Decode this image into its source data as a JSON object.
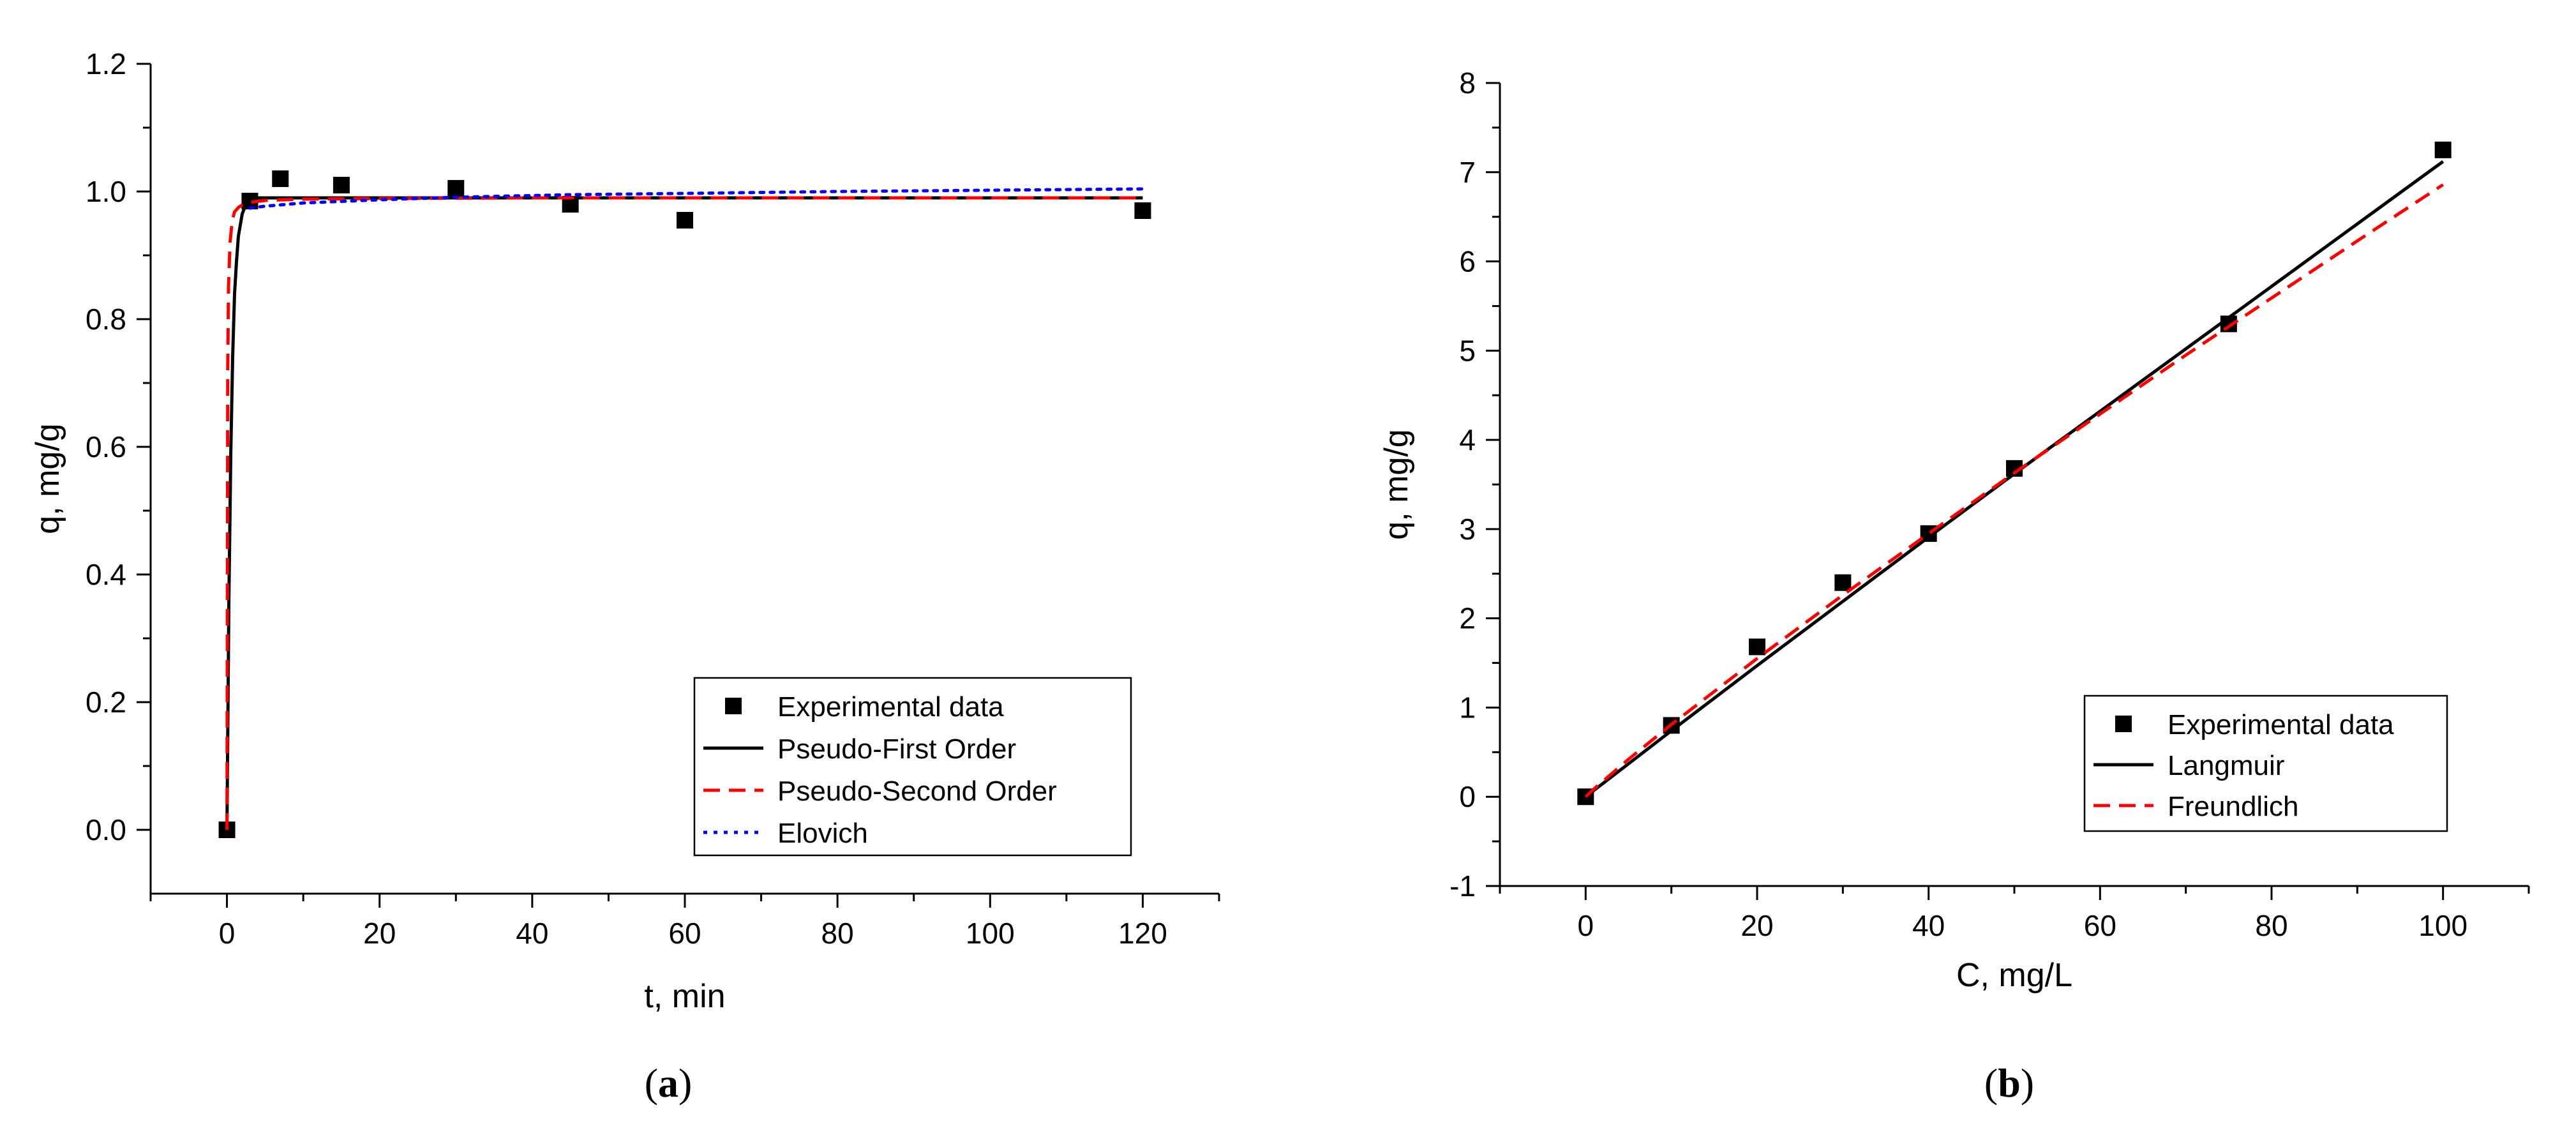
{
  "captions": {
    "a": "a",
    "b": "b"
  },
  "chart_data": [
    {
      "type": "scatter",
      "panel": "a",
      "xlabel": "t, min",
      "ylabel": "q, mg/g",
      "xlim": [
        -10,
        130
      ],
      "ylim": [
        -0.1,
        1.2
      ],
      "xticks": [
        0,
        20,
        40,
        60,
        80,
        100,
        120
      ],
      "yticks": [
        0.0,
        0.2,
        0.4,
        0.6,
        0.8,
        1.0,
        1.2
      ],
      "tick_decimals_y": 1,
      "legend_position": "bottom-right",
      "series": [
        {
          "name": "Experimental data",
          "kind": "markers",
          "color": "#000000",
          "x": [
            0,
            3,
            7,
            15,
            30,
            45,
            60,
            120
          ],
          "y": [
            0.0,
            0.985,
            1.02,
            1.01,
            1.005,
            0.98,
            0.955,
            0.97
          ]
        },
        {
          "name": "Pseudo-First Order",
          "kind": "line",
          "dash": "solid",
          "color": "#000000",
          "x": [
            0,
            0.25,
            0.5,
            0.75,
            1,
            1.25,
            1.5,
            2,
            2.5,
            3,
            4,
            6,
            10,
            20,
            40,
            60,
            80,
            100,
            120
          ],
          "y": [
            0,
            0.36,
            0.59,
            0.74,
            0.84,
            0.89,
            0.93,
            0.965,
            0.98,
            0.985,
            0.99,
            0.99,
            0.99,
            0.99,
            0.99,
            0.99,
            0.99,
            0.99,
            0.99
          ]
        },
        {
          "name": "Pseudo-Second Order",
          "kind": "line",
          "dash": "dashed",
          "color": "#ff0000",
          "x": [
            0,
            0.1,
            0.2,
            0.4,
            0.7,
            1,
            1.5,
            2,
            3,
            5,
            10,
            20,
            40,
            60,
            80,
            100,
            120
          ],
          "y": [
            0,
            0.72,
            0.85,
            0.92,
            0.955,
            0.968,
            0.975,
            0.979,
            0.983,
            0.986,
            0.988,
            0.989,
            0.99,
            0.99,
            0.99,
            0.99,
            0.99
          ]
        },
        {
          "name": "Elovich",
          "kind": "line",
          "dash": "dotted",
          "color": "#0000ff",
          "x": [
            3,
            5,
            10,
            20,
            30,
            45,
            60,
            80,
            100,
            120
          ],
          "y": [
            0.974,
            0.977,
            0.982,
            0.987,
            0.991,
            0.995,
            0.997,
            1.0,
            1.002,
            1.004
          ]
        }
      ]
    },
    {
      "type": "scatter",
      "panel": "b",
      "xlabel": "C, mg/L",
      "ylabel": "q, mg/g",
      "xlim": [
        -10,
        110
      ],
      "ylim": [
        -1,
        8
      ],
      "xticks": [
        0,
        20,
        40,
        60,
        80,
        100
      ],
      "yticks": [
        -1,
        0,
        1,
        2,
        3,
        4,
        5,
        6,
        7,
        8
      ],
      "tick_decimals_y": 0,
      "legend_position": "bottom-right",
      "series": [
        {
          "name": "Experimental data",
          "kind": "markers",
          "color": "#000000",
          "x": [
            0,
            10,
            20,
            30,
            40,
            50,
            75,
            100
          ],
          "y": [
            0.0,
            0.8,
            1.68,
            2.4,
            2.95,
            3.68,
            5.3,
            7.25
          ]
        },
        {
          "name": "Langmuir",
          "kind": "line",
          "dash": "solid",
          "color": "#000000",
          "x": [
            0,
            10,
            20,
            30,
            40,
            50,
            60,
            70,
            80,
            90,
            100
          ],
          "y": [
            0,
            0.74,
            1.47,
            2.19,
            2.91,
            3.62,
            4.32,
            5.02,
            5.72,
            6.42,
            7.12
          ]
        },
        {
          "name": "Freundlich",
          "kind": "line",
          "dash": "dashed",
          "color": "#ff0000",
          "x": [
            0,
            1,
            5,
            10,
            20,
            30,
            40,
            50,
            60,
            70,
            80,
            90,
            100
          ],
          "y": [
            0,
            0.09,
            0.42,
            0.81,
            1.55,
            2.26,
            2.95,
            3.63,
            4.29,
            4.95,
            5.59,
            6.23,
            6.86
          ]
        }
      ]
    }
  ]
}
